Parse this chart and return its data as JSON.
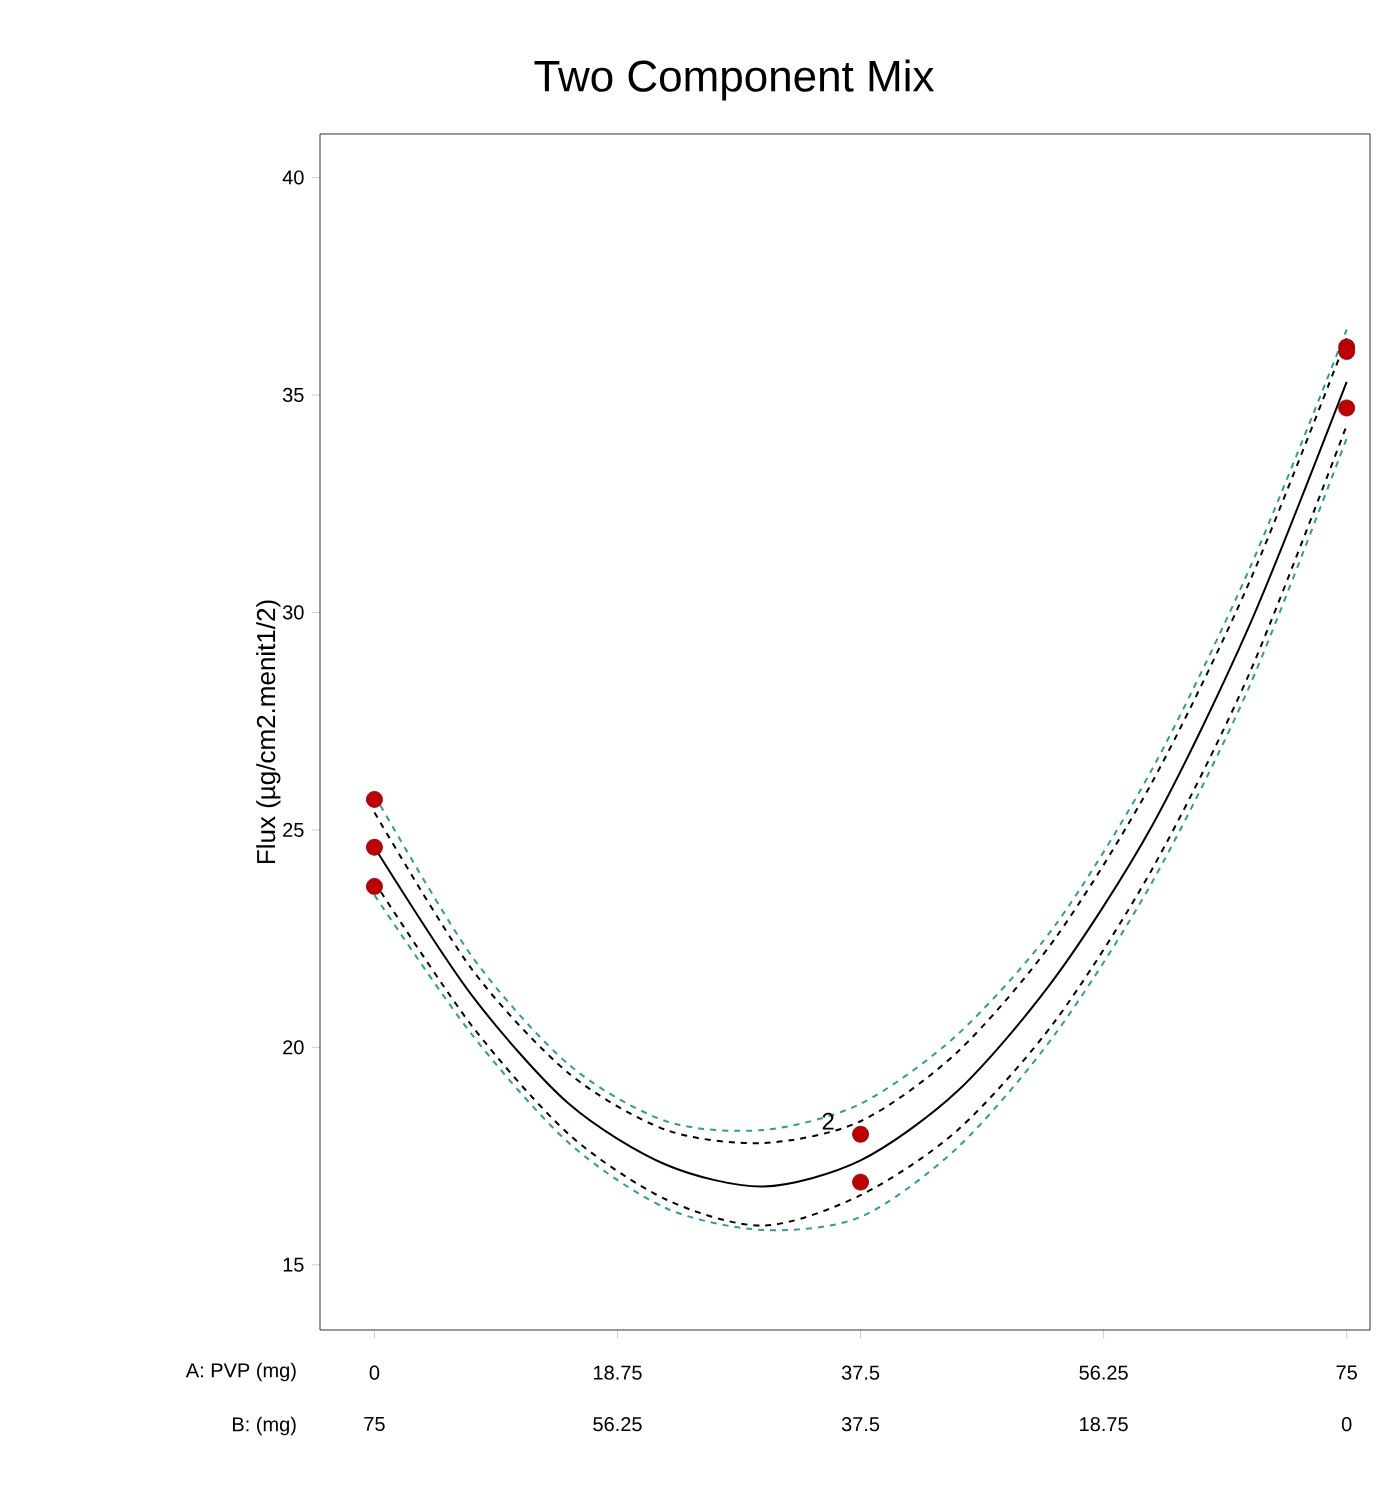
{
  "chart_data": {
    "type": "line",
    "title": "Two Component Mix",
    "xlabel": "A: PVP (mg)",
    "ylabel": "Flux (µg/cm2.menit1/2)",
    "x2label": "B: (mg)",
    "xlim": [
      -4.2,
      76.8
    ],
    "xticks": [
      0,
      18.75,
      37.5,
      56.25,
      75
    ],
    "x2lim": [
      79.2,
      -1.8
    ],
    "x2ticks": [
      75,
      56.25,
      37.5,
      18.75,
      0
    ],
    "ylim": [
      13.5,
      41
    ],
    "yticks": [
      15,
      20,
      25,
      30,
      35,
      40
    ],
    "annotations": [
      {
        "text": "2",
        "x": 35,
        "y": 18.3
      }
    ],
    "series": [
      {
        "color": "#000000",
        "line_style": "dashed",
        "x": [
          0,
          7.5,
          15,
          22.5,
          30,
          37.5,
          45,
          52.5,
          60,
          67.5,
          75
        ],
        "values": [
          23.8,
          20.5,
          18.0,
          16.5,
          15.9,
          16.6,
          18.1,
          20.6,
          24.1,
          28.6,
          34.3
        ]
      },
      {
        "color": "#000000",
        "line_style": "dashed",
        "x": [
          0,
          7.5,
          15,
          22.5,
          30,
          37.5,
          45,
          52.5,
          60,
          67.5,
          75
        ],
        "values": [
          25.4,
          21.8,
          19.4,
          18.1,
          17.8,
          18.3,
          19.9,
          22.5,
          26.1,
          30.7,
          36.3
        ]
      },
      {
        "color": "#2a9d9d",
        "line_style": "dashed",
        "x": [
          0,
          7.5,
          15,
          22.5,
          30,
          37.5,
          45,
          52.5,
          60,
          67.5,
          75
        ],
        "values": [
          23.5,
          20.3,
          17.8,
          16.3,
          15.8,
          16.1,
          17.7,
          20.3,
          23.8,
          28.3,
          34.0
        ]
      },
      {
        "color": "#2a9d9d",
        "line_style": "dashed",
        "x": [
          0,
          7.5,
          15,
          22.5,
          30,
          37.5,
          45,
          52.5,
          60,
          67.5,
          75
        ],
        "values": [
          25.8,
          22.1,
          19.6,
          18.3,
          18.1,
          18.7,
          20.3,
          22.8,
          26.4,
          31.0,
          36.5
        ]
      },
      {
        "color": "#000000",
        "line_style": "solid",
        "x": [
          0,
          7.5,
          15,
          22.5,
          30,
          37.5,
          45,
          52.5,
          60,
          67.5,
          75
        ],
        "values": [
          24.6,
          21.2,
          18.7,
          17.3,
          16.8,
          17.4,
          19.0,
          21.6,
          25.1,
          29.7,
          35.3
        ]
      },
      {
        "type": "scatter",
        "color": "#c00000",
        "marker": "circle",
        "x": [
          0,
          0,
          0,
          37.5,
          37.5,
          75,
          75,
          75
        ],
        "values": [
          25.7,
          24.6,
          23.7,
          18.0,
          16.9,
          36.1,
          36.0,
          34.7
        ]
      }
    ]
  }
}
